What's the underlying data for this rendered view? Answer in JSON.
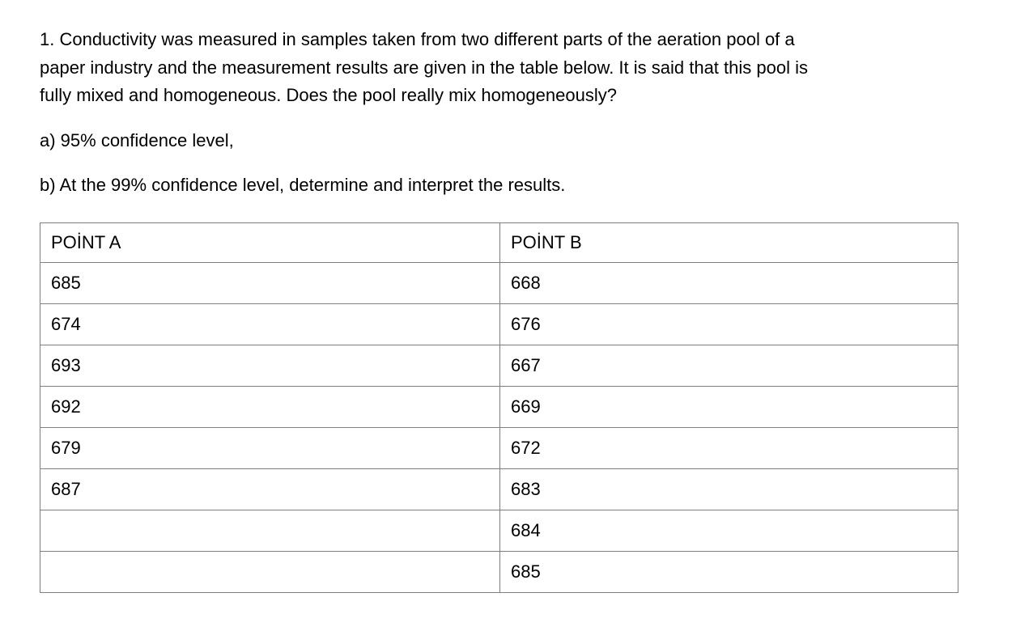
{
  "document": {
    "question": {
      "lines": [
        "1. Conductivity was measured in samples taken from two different parts of the aeration pool of a",
        "paper industry and the measurement results are given in the table below. It is said that this pool is",
        "fully mixed and homogeneous. Does the pool really mix homogeneously?"
      ],
      "part_a": "a) 95% confidence level,",
      "part_b": "b) At the 99% confidence level, determine and interpret the results."
    },
    "table": {
      "headers": [
        "POİNT A",
        "POİNT B"
      ],
      "rows": [
        {
          "a": "685",
          "b": "668"
        },
        {
          "a": "674",
          "b": "676"
        },
        {
          "a": "693",
          "b": "667"
        },
        {
          "a": "692",
          "b": "669"
        },
        {
          "a": "679",
          "b": "672"
        },
        {
          "a": "687",
          "b": "683"
        },
        {
          "a": "",
          "b": "684"
        },
        {
          "a": "",
          "b": "685"
        }
      ]
    },
    "colors": {
      "text": "#000000",
      "table_border": "#808080",
      "background": "#ffffff"
    }
  }
}
